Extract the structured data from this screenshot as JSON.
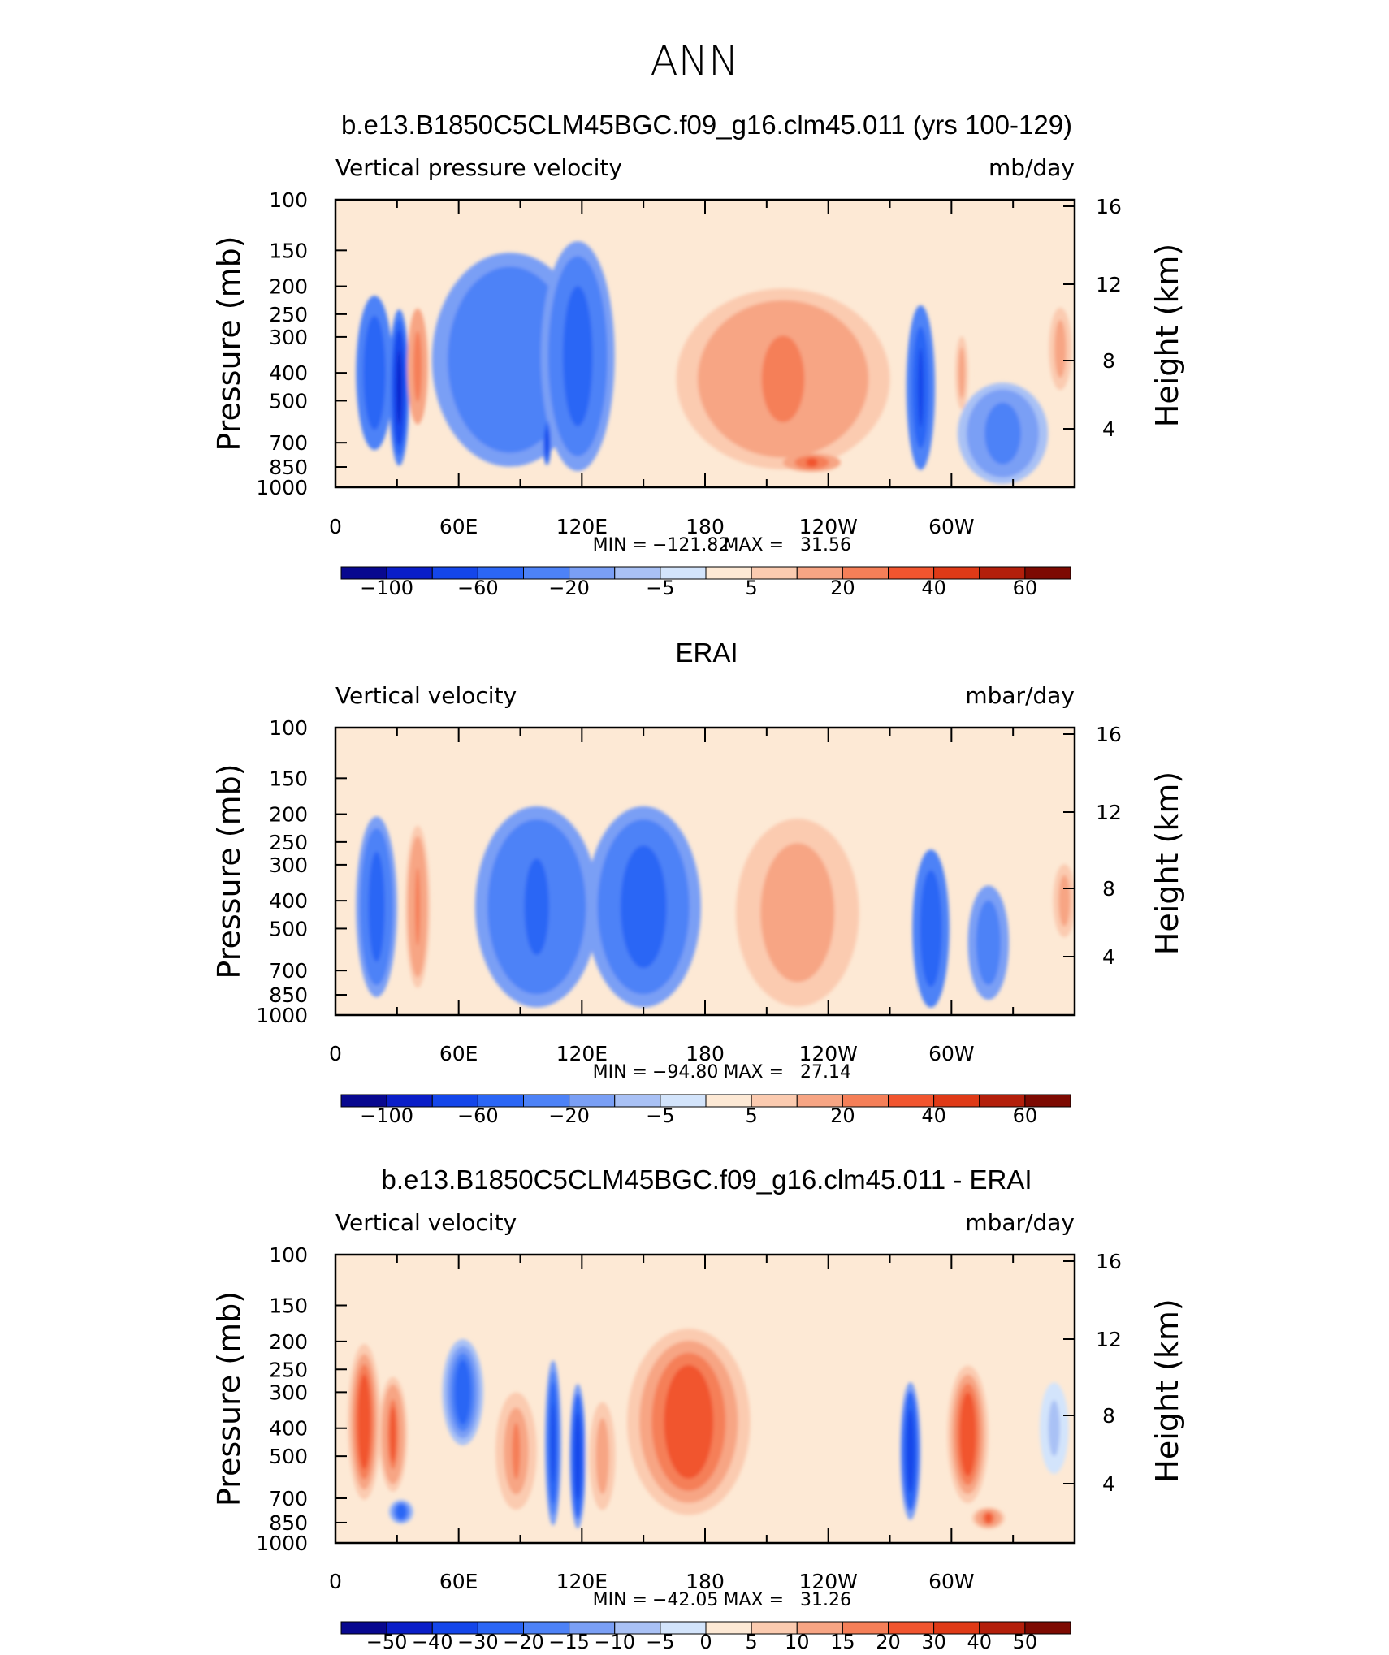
{
  "page_title": "ANN",
  "colors": {
    "cbar_main": [
      "#08088f",
      "#0a1ec8",
      "#1446ea",
      "#2b66f5",
      "#4d82f7",
      "#7a9ff5",
      "#a9c1f5",
      "#d3e4fb",
      "#fde9d5",
      "#fbcbb0",
      "#f7a584",
      "#f57f58",
      "#f1552f",
      "#df3a17",
      "#b31f0b",
      "#7d0a02"
    ],
    "cbar_diff": [
      "#08088f",
      "#0a1ec8",
      "#1446ea",
      "#2b66f5",
      "#4d82f7",
      "#7a9ff5",
      "#a9c1f5",
      "#d3e4fb",
      "#fde9d5",
      "#fbcbb0",
      "#f7a584",
      "#f57f58",
      "#f1552f",
      "#df3a17",
      "#b31f0b",
      "#7d0a02"
    ]
  },
  "chart_data": [
    {
      "type": "heatmap",
      "title": "b.e13.B1850C5CLM45BGC.f09_g16.clm45.011 (yrs 100-129)",
      "variable": "Vertical pressure velocity",
      "units": "mb/day",
      "ylabel": "Pressure (mb)",
      "y2label": "Height (km)",
      "y_ticks": [
        "100",
        "150",
        "200",
        "250",
        "300",
        "400",
        "500",
        "700",
        "850",
        "1000"
      ],
      "y_tick_values": [
        100,
        150,
        200,
        250,
        300,
        400,
        500,
        700,
        850,
        1000
      ],
      "y2_ticks": [
        "16",
        "12",
        "8",
        "4"
      ],
      "x_ticks": [
        "0",
        "60E",
        "120E",
        "180",
        "120W",
        "60W"
      ],
      "x_tick_values": [
        0,
        60,
        120,
        180,
        240,
        300
      ],
      "xlim": [
        0,
        360
      ],
      "ylim": [
        1000,
        100
      ],
      "min_label": "MIN =",
      "min_value": "−121.82",
      "max_label": "MAX =",
      "max_value": "31.56",
      "colorbar_labels": [
        "−100",
        "−60",
        "−20",
        "−5",
        "5",
        "20",
        "40",
        "60"
      ],
      "colorbar_boundaries": [
        -120,
        -100,
        -80,
        -60,
        -40,
        -20,
        -10,
        -5,
        0,
        5,
        10,
        20,
        30,
        40,
        50,
        60
      ],
      "blobs": [
        {
          "lon": 19,
          "p": 400,
          "w": 9,
          "h": 440,
          "v": -60
        },
        {
          "lon": 31,
          "p": 450,
          "w": 5,
          "h": 500,
          "v": -90
        },
        {
          "lon": 40,
          "p": 380,
          "w": 5,
          "h": 330,
          "v": 28
        },
        {
          "lon": 85,
          "p": 360,
          "w": 38,
          "h": 500,
          "v": -40
        },
        {
          "lon": 118,
          "p": 350,
          "w": 18,
          "h": 560,
          "v": -55
        },
        {
          "lon": 103,
          "p": 700,
          "w": 2,
          "h": 250,
          "v": -80
        },
        {
          "lon": 218,
          "p": 420,
          "w": 52,
          "h": 520,
          "v": 22
        },
        {
          "lon": 232,
          "p": 820,
          "w": 14,
          "h": 120,
          "v": 32
        },
        {
          "lon": 285,
          "p": 450,
          "w": 7,
          "h": 520,
          "v": -70
        },
        {
          "lon": 305,
          "p": 400,
          "w": 4,
          "h": 260,
          "v": 12
        },
        {
          "lon": 325,
          "p": 650,
          "w": 22,
          "h": 500,
          "v": -25
        },
        {
          "lon": 353,
          "p": 330,
          "w": 7,
          "h": 240,
          "v": 12
        }
      ]
    },
    {
      "type": "heatmap",
      "title": "ERAI",
      "variable": "Vertical velocity",
      "units": "mbar/day",
      "ylabel": "Pressure (mb)",
      "y2label": "Height (km)",
      "y_ticks": [
        "100",
        "150",
        "200",
        "250",
        "300",
        "400",
        "500",
        "700",
        "850",
        "1000"
      ],
      "y_tick_values": [
        100,
        150,
        200,
        250,
        300,
        400,
        500,
        700,
        850,
        1000
      ],
      "y2_ticks": [
        "16",
        "12",
        "8",
        "4"
      ],
      "x_ticks": [
        "0",
        "60E",
        "120E",
        "180",
        "120W",
        "60W"
      ],
      "x_tick_values": [
        0,
        60,
        120,
        180,
        240,
        300
      ],
      "xlim": [
        0,
        360
      ],
      "ylim": [
        1000,
        100
      ],
      "min_label": "MIN =",
      "min_value": "−94.80",
      "max_label": "MAX =",
      "max_value": "27.14",
      "colorbar_labels": [
        "−100",
        "−60",
        "−20",
        "−5",
        "5",
        "20",
        "40",
        "60"
      ],
      "colorbar_boundaries": [
        -120,
        -100,
        -80,
        -60,
        -40,
        -20,
        -10,
        -5,
        0,
        5,
        10,
        20,
        30,
        40,
        50,
        60
      ],
      "blobs": [
        {
          "lon": 20,
          "p": 420,
          "w": 10,
          "h": 520,
          "v": -55
        },
        {
          "lon": 40,
          "p": 420,
          "w": 6,
          "h": 480,
          "v": 20
        },
        {
          "lon": 98,
          "p": 420,
          "w": 30,
          "h": 560,
          "v": -45
        },
        {
          "lon": 150,
          "p": 420,
          "w": 28,
          "h": 560,
          "v": -50
        },
        {
          "lon": 225,
          "p": 440,
          "w": 30,
          "h": 560,
          "v": 18
        },
        {
          "lon": 290,
          "p": 500,
          "w": 9,
          "h": 560,
          "v": -60
        },
        {
          "lon": 318,
          "p": 560,
          "w": 10,
          "h": 480,
          "v": -35
        },
        {
          "lon": 355,
          "p": 400,
          "w": 7,
          "h": 260,
          "v": 12
        }
      ]
    },
    {
      "type": "heatmap",
      "title": "b.e13.B1850C5CLM45BGC.f09_g16.clm45.011 - ERAI",
      "variable": "Vertical velocity",
      "units": "mbar/day",
      "ylabel": "Pressure (mb)",
      "y2label": "Height (km)",
      "y_ticks": [
        "100",
        "150",
        "200",
        "250",
        "300",
        "400",
        "500",
        "700",
        "850",
        "1000"
      ],
      "y_tick_values": [
        100,
        150,
        200,
        250,
        300,
        400,
        500,
        700,
        850,
        1000
      ],
      "y2_ticks": [
        "16",
        "12",
        "8",
        "4"
      ],
      "x_ticks": [
        "0",
        "60E",
        "120E",
        "180",
        "120W",
        "60W"
      ],
      "x_tick_values": [
        0,
        60,
        120,
        180,
        240,
        300
      ],
      "xlim": [
        0,
        360
      ],
      "ylim": [
        1000,
        100
      ],
      "min_label": "MIN =",
      "min_value": "−42.05",
      "max_label": "MAX =",
      "max_value": "31.26",
      "colorbar_labels": [
        "−50",
        "−40",
        "−30",
        "−20",
        "−15",
        "−10",
        "−5",
        "0",
        "5",
        "10",
        "15",
        "20",
        "30",
        "40",
        "50"
      ],
      "colorbar_boundaries": [
        -60,
        -50,
        -40,
        -30,
        -20,
        -15,
        -10,
        -5,
        0,
        5,
        10,
        15,
        20,
        30,
        40,
        50
      ],
      "blobs": [
        {
          "lon": 14,
          "p": 380,
          "w": 8,
          "h": 420,
          "v": 26
        },
        {
          "lon": 28,
          "p": 420,
          "w": 7,
          "h": 360,
          "v": 20
        },
        {
          "lon": 32,
          "p": 780,
          "w": 6,
          "h": 150,
          "v": -25
        },
        {
          "lon": 62,
          "p": 300,
          "w": 10,
          "h": 240,
          "v": -25
        },
        {
          "lon": 88,
          "p": 480,
          "w": 10,
          "h": 420,
          "v": 15
        },
        {
          "lon": 106,
          "p": 450,
          "w": 4,
          "h": 520,
          "v": -35
        },
        {
          "lon": 118,
          "p": 500,
          "w": 4,
          "h": 520,
          "v": -40
        },
        {
          "lon": 172,
          "p": 380,
          "w": 30,
          "h": 480,
          "v": 24
        },
        {
          "lon": 130,
          "p": 500,
          "w": 8,
          "h": 460,
          "v": 12
        },
        {
          "lon": 280,
          "p": 480,
          "w": 5,
          "h": 480,
          "v": -40
        },
        {
          "lon": 308,
          "p": 420,
          "w": 10,
          "h": 420,
          "v": 26
        },
        {
          "lon": 318,
          "p": 820,
          "w": 8,
          "h": 140,
          "v": 22
        },
        {
          "lon": 350,
          "p": 400,
          "w": 7,
          "h": 280,
          "v": -6
        }
      ]
    }
  ]
}
